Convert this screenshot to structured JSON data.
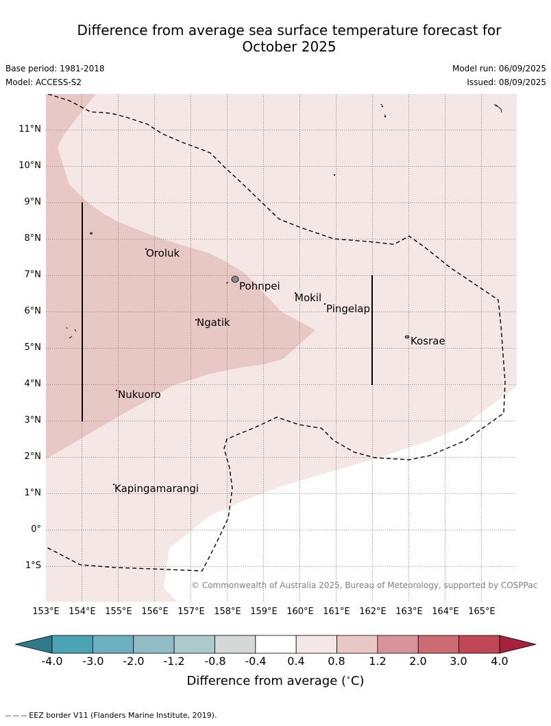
{
  "title_line1": "Difference from average sea surface temperature forecast for",
  "title_line2": "October 2025",
  "meta": {
    "base_period": "Base period: 1981-2018",
    "model": "Model: ACCESS-S2",
    "model_run": "Model run: 06/09/2025",
    "issued": "Issued: 08/09/2025"
  },
  "lat_labels": [
    "11°N",
    "10°N",
    "9°N",
    "8°N",
    "7°N",
    "6°N",
    "5°N",
    "4°N",
    "3°N",
    "2°N",
    "1°N",
    "0°",
    "1°S"
  ],
  "lon_labels": [
    "153°E",
    "154°E",
    "155°E",
    "156°E",
    "157°E",
    "158°E",
    "159°E",
    "160°E",
    "161°E",
    "162°E",
    "163°E",
    "164°E",
    "165°E"
  ],
  "places": [
    "Oroluk",
    "Pohnpei",
    "Mokil",
    "Pingelap",
    "Ngatik",
    "Kosrae",
    "Nukuoro",
    "Kapingamarangi"
  ],
  "copyright": "© Commonwealth of Australia 2025, Bureau of Meteorology, supported by COSPPac",
  "colorbar": {
    "ticks": [
      "-4.0",
      "-3.0",
      "-2.0",
      "-1.2",
      "-0.8",
      "-0.4",
      "0.4",
      "0.8",
      "1.2",
      "2.0",
      "3.0",
      "4.0"
    ],
    "colors": [
      "#2f7a87",
      "#4aa4b5",
      "#6db1c1",
      "#8fbcc5",
      "#acc9cc",
      "#d4d8d8",
      "#ffffff",
      "#f4e7e6",
      "#e7c8c4",
      "#d99499",
      "#cd6b73",
      "#c14757",
      "#a8213a"
    ],
    "label": "Difference from average ($^\\circ$C)"
  },
  "footer": "--  --  -- EEZ border V11 (Flanders Marine Institute, 2019)."
}
